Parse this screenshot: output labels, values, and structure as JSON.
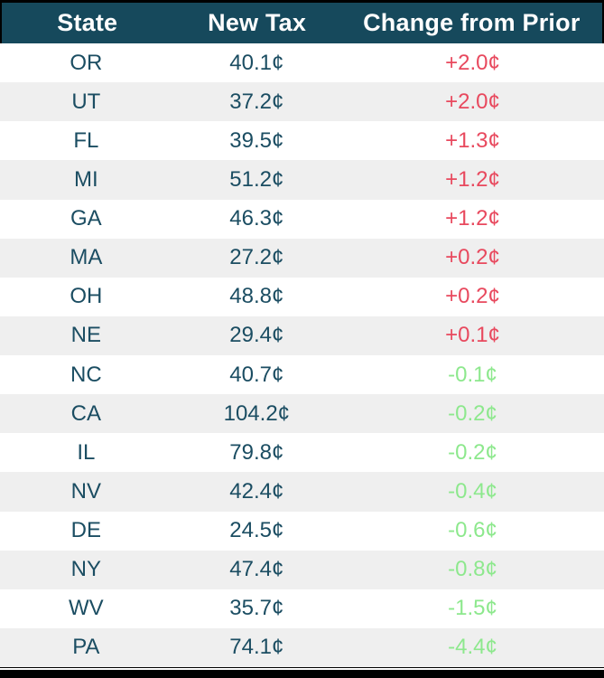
{
  "colors": {
    "header_bg": "#16495c",
    "header_text": "#ffffff",
    "row_bg": "#ffffff",
    "row_alt_bg": "#efefef",
    "cell_text": "#1b4d62",
    "increase": "#e8495e",
    "decrease": "#8de88d",
    "frame": "#000000"
  },
  "chart_data": {
    "type": "table",
    "columns": [
      "State",
      "New Tax",
      "Change from Prior"
    ],
    "rows": [
      {
        "state": "OR",
        "new_tax": "40.1¢",
        "change": "+2.0¢",
        "direction": "increase"
      },
      {
        "state": "UT",
        "new_tax": "37.2¢",
        "change": "+2.0¢",
        "direction": "increase"
      },
      {
        "state": "FL",
        "new_tax": "39.5¢",
        "change": "+1.3¢",
        "direction": "increase"
      },
      {
        "state": "MI",
        "new_tax": "51.2¢",
        "change": "+1.2¢",
        "direction": "increase"
      },
      {
        "state": "GA",
        "new_tax": "46.3¢",
        "change": "+1.2¢",
        "direction": "increase"
      },
      {
        "state": "MA",
        "new_tax": "27.2¢",
        "change": "+0.2¢",
        "direction": "increase"
      },
      {
        "state": "OH",
        "new_tax": "48.8¢",
        "change": "+0.2¢",
        "direction": "increase"
      },
      {
        "state": "NE",
        "new_tax": "29.4¢",
        "change": "+0.1¢",
        "direction": "increase"
      },
      {
        "state": "NC",
        "new_tax": "40.7¢",
        "change": "-0.1¢",
        "direction": "decrease"
      },
      {
        "state": "CA",
        "new_tax": "104.2¢",
        "change": "-0.2¢",
        "direction": "decrease"
      },
      {
        "state": "IL",
        "new_tax": "79.8¢",
        "change": "-0.2¢",
        "direction": "decrease"
      },
      {
        "state": "NV",
        "new_tax": "42.4¢",
        "change": "-0.4¢",
        "direction": "decrease"
      },
      {
        "state": "DE",
        "new_tax": "24.5¢",
        "change": "-0.6¢",
        "direction": "decrease"
      },
      {
        "state": "NY",
        "new_tax": "47.4¢",
        "change": "-0.8¢",
        "direction": "decrease"
      },
      {
        "state": "WV",
        "new_tax": "35.7¢",
        "change": "-1.5¢",
        "direction": "decrease"
      },
      {
        "state": "PA",
        "new_tax": "74.1¢",
        "change": "-4.4¢",
        "direction": "decrease"
      }
    ]
  }
}
